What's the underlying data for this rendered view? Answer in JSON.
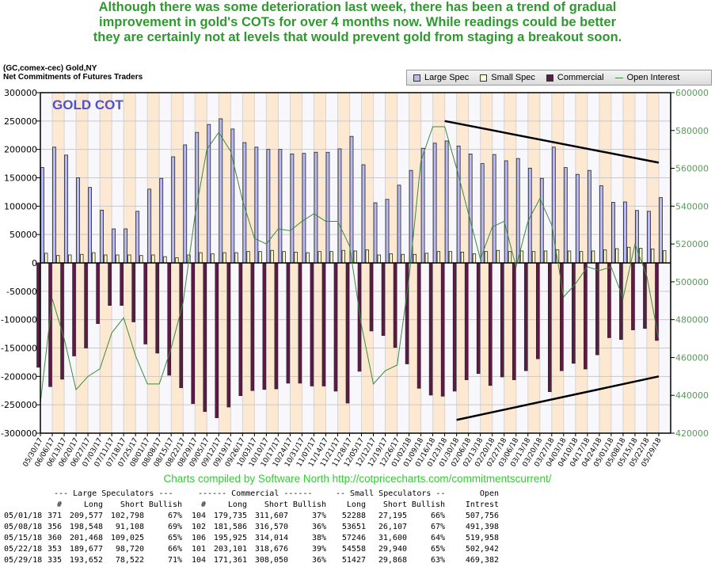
{
  "headline": [
    "Although there was some deterioration last week, there has been a trend of gradual",
    "improvement in gold's COTs for over 4 months now. While readings could be better",
    "they are certainly not at levels that would prevent gold from staging a breakout soon."
  ],
  "chart_header": {
    "line1": "(GC,comex-cec) Gold,NY",
    "line2": "Net Commitments of Futures Traders"
  },
  "credits": "Charts compiled by Software North  http://cotpricecharts.com/commitmentscurrent/",
  "colors": {
    "large_spec": "#b9b9f2",
    "small_spec": "#ffffcc",
    "commercial": "#5e1a47",
    "open_interest": "#3a8a3a",
    "band": "#fde9d2",
    "headline": "#2e9a2e"
  },
  "chart_data": {
    "type": "bar",
    "title": "GOLD COT",
    "legend": [
      "Large Spec",
      "Small Spec",
      "Commercial",
      "Open Interest"
    ],
    "legend_placement": "top-right",
    "ylim_left": [
      -300000,
      300000
    ],
    "ylim_right": [
      420000,
      600000
    ],
    "yticks_left": [
      "300000",
      "250000",
      "200000",
      "150000",
      "100000",
      "50000",
      "0",
      "-50000",
      "-100000",
      "-150000",
      "-200000",
      "-250000",
      "-300000"
    ],
    "yticks_right": [
      "600000",
      "580000",
      "560000",
      "540000",
      "520000",
      "500000",
      "480000",
      "460000",
      "440000",
      "420000"
    ],
    "categories": [
      "05/30/17",
      "06/06/17",
      "06/13/17",
      "06/20/17",
      "06/27/17",
      "07/03/17",
      "07/11/17",
      "07/18/17",
      "07/25/17",
      "08/01/17",
      "08/08/17",
      "08/15/17",
      "08/22/17",
      "08/29/17",
      "09/05/17",
      "09/12/17",
      "09/19/17",
      "09/26/17",
      "10/03/17",
      "10/10/17",
      "10/17/17",
      "10/24/17",
      "10/31/17",
      "11/07/17",
      "11/14/17",
      "11/21/17",
      "11/28/17",
      "12/05/17",
      "12/12/17",
      "12/19/17",
      "12/26/17",
      "01/02/18",
      "01/09/18",
      "01/16/18",
      "01/23/18",
      "01/30/18",
      "02/06/18",
      "02/13/18",
      "02/20/18",
      "02/27/18",
      "03/06/18",
      "03/13/18",
      "03/20/18",
      "03/27/18",
      "04/03/18",
      "04/10/18",
      "04/17/18",
      "04/24/18",
      "05/01/18",
      "05/08/18",
      "05/15/18",
      "05/22/18",
      "05/29/18"
    ],
    "series": [
      {
        "name": "Large Spec",
        "axis": "left",
        "values": [
          168000,
          204000,
          190000,
          150000,
          133000,
          93000,
          60000,
          60000,
          91000,
          130000,
          149000,
          187000,
          208000,
          230000,
          244000,
          254000,
          236000,
          212000,
          204000,
          200000,
          200000,
          192000,
          193000,
          195000,
          195000,
          201000,
          223000,
          173000,
          106000,
          112000,
          137000,
          163000,
          202000,
          211000,
          215000,
          206000,
          192000,
          175000,
          191000,
          180000,
          184000,
          167000,
          149000,
          204000,
          168000,
          156000,
          163000,
          136000,
          106779,
          107440,
          92443,
          90957,
          115130
        ]
      },
      {
        "name": "Small Spec",
        "axis": "left",
        "values": [
          17000,
          13000,
          14000,
          15000,
          18000,
          14000,
          14000,
          14000,
          13000,
          14000,
          11000,
          9000,
          14000,
          18000,
          16000,
          18000,
          18000,
          20000,
          20000,
          22000,
          20000,
          19000,
          18000,
          20000,
          20000,
          22000,
          21000,
          23000,
          14000,
          16000,
          15000,
          15000,
          17000,
          20000,
          20000,
          19000,
          16000,
          20000,
          22000,
          20000,
          21000,
          20000,
          21000,
          23000,
          21000,
          20000,
          21000,
          23000,
          25093,
          27544,
          25646,
          24618,
          21559
        ]
      },
      {
        "name": "Commercial",
        "axis": "left",
        "values": [
          -184000,
          -218000,
          -205000,
          -164000,
          -150000,
          -107000,
          -75000,
          -75000,
          -104000,
          -143000,
          -159000,
          -198000,
          -220000,
          -248000,
          -262000,
          -273000,
          -254000,
          -234000,
          -225000,
          -223000,
          -222000,
          -212000,
          -212000,
          -217000,
          -217000,
          -226000,
          -247000,
          -191000,
          -120000,
          -128000,
          -149000,
          -178000,
          -221000,
          -233000,
          -235000,
          -226000,
          -206000,
          -195000,
          -216000,
          -201000,
          -206000,
          -190000,
          -169000,
          -227000,
          -190000,
          -177000,
          -187000,
          -162000,
          -131872,
          -134984,
          -118089,
          -115575,
          -136689
        ]
      },
      {
        "name": "Open Interest",
        "axis": "right",
        "values": [
          436000,
          491000,
          470000,
          443000,
          450000,
          454000,
          473000,
          481000,
          461000,
          446000,
          446000,
          465000,
          489000,
          535000,
          570000,
          579000,
          569000,
          543000,
          523000,
          520000,
          528000,
          527000,
          532000,
          536000,
          532000,
          532000,
          519000,
          477000,
          446000,
          453000,
          456000,
          502000,
          564000,
          582000,
          582000,
          560000,
          536000,
          512000,
          529000,
          532000,
          508000,
          532000,
          544000,
          530000,
          492000,
          499000,
          508000,
          506000,
          507756,
          491398,
          519958,
          502942,
          469382
        ]
      }
    ],
    "annotations": [
      {
        "type": "trendline",
        "axis": "right",
        "from": [
          "01/23/18",
          585000
        ],
        "to": [
          "05/29/18",
          563000
        ]
      },
      {
        "type": "trendline",
        "axis": "right",
        "from": [
          "01/30/18",
          427000
        ],
        "to": [
          "05/29/18",
          450000
        ]
      }
    ]
  },
  "table": {
    "group_headers": [
      "--- Large Speculators ---",
      "------ Commercial ------",
      "-- Small Speculators --",
      "Open"
    ],
    "col_headers": [
      "#",
      "Long",
      "Short",
      "Bullish",
      "#",
      "Long",
      "Short",
      "Bullish",
      "Long",
      "Short",
      "Bullish",
      "Intrest"
    ],
    "rows": [
      [
        "05/01/18",
        "371",
        "209,577",
        "102,798",
        "67%",
        "104",
        "179,735",
        "311,607",
        "37%",
        "52288",
        "27,195",
        "66%",
        "507,756"
      ],
      [
        "05/08/18",
        "356",
        "198,548",
        "91,108",
        "69%",
        "102",
        "181,586",
        "316,570",
        "36%",
        "53651",
        "26,107",
        "67%",
        "491,398"
      ],
      [
        "05/15/18",
        "360",
        "201,468",
        "109,025",
        "65%",
        "106",
        "195,925",
        "314,014",
        "38%",
        "57246",
        "31,600",
        "64%",
        "519,958"
      ],
      [
        "05/22/18",
        "353",
        "189,677",
        "98,720",
        "66%",
        "101",
        "203,101",
        "318,676",
        "39%",
        "54558",
        "29,940",
        "65%",
        "502,942"
      ],
      [
        "05/29/18",
        "335",
        "193,652",
        "78,522",
        "71%",
        "104",
        "171,361",
        "308,050",
        "36%",
        "51427",
        "29,868",
        "63%",
        "469,382"
      ]
    ]
  }
}
